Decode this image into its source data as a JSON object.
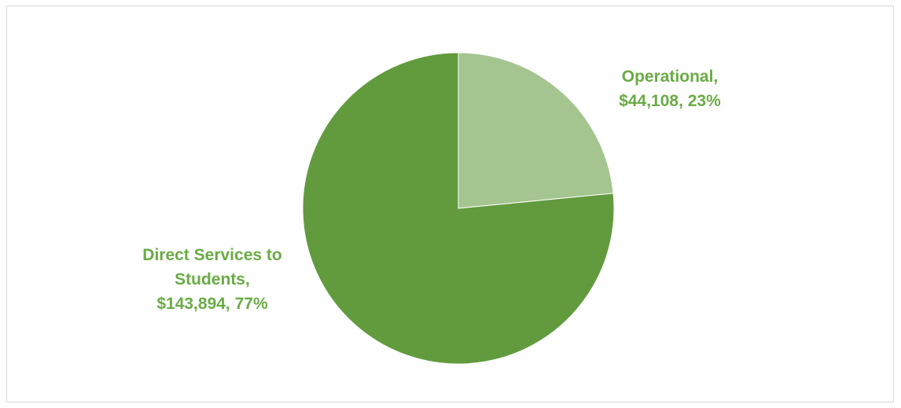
{
  "chart_data": {
    "type": "pie",
    "title": "",
    "start_angle_deg": 0,
    "direction": "clockwise",
    "slices": [
      {
        "category": "Operational",
        "value": 44108,
        "percent": 23,
        "color": "#a5c590",
        "label_lines": [
          "Operational,",
          "$44,108, 23%"
        ]
      },
      {
        "category": "Direct Services to Students",
        "value": 143894,
        "percent": 77,
        "color": "#629b3e",
        "label_lines": [
          "Direct Services to",
          "Students,",
          "$143,894, 77%"
        ]
      }
    ],
    "label_color": "#6aab45",
    "legend": "none"
  }
}
